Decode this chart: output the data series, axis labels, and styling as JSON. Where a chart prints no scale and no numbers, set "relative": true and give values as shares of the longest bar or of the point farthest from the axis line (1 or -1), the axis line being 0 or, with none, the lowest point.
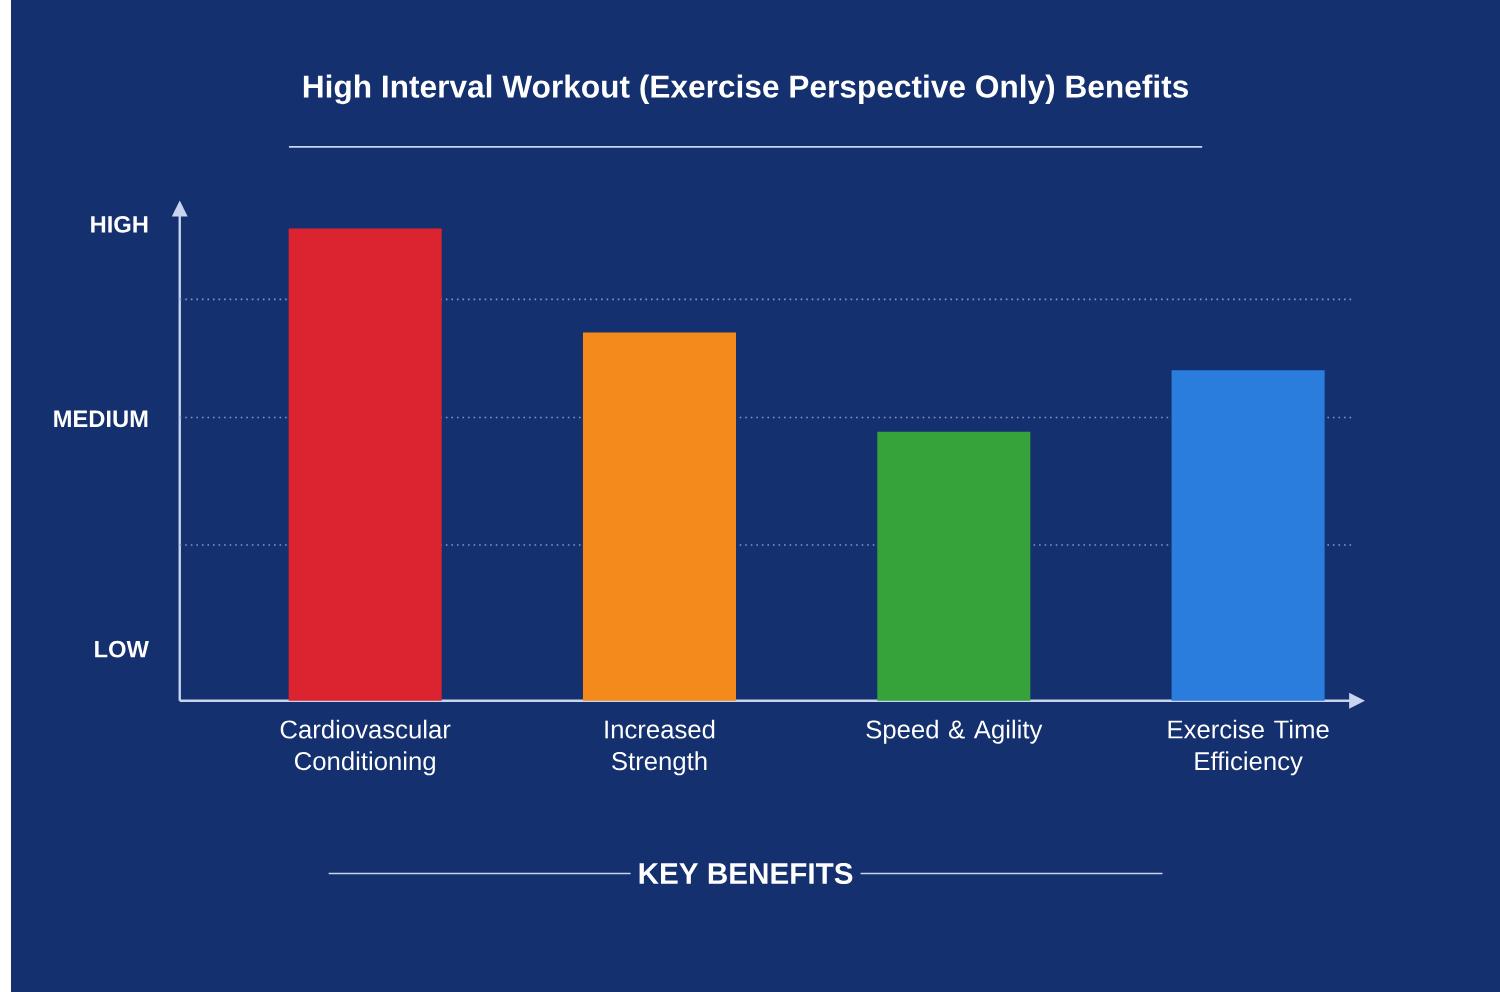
{
  "chart_data": {
    "type": "bar",
    "title": "High Interval Workout (Exercise Perspective Only) Benefits",
    "xlabel": "KEY BENEFITS",
    "categories": [
      "Cardiovascular Conditioning",
      "Increased Strength",
      "Speed & Agility",
      "Exercise Time Efficiency"
    ],
    "values": [
      1,
      0.78,
      0.57,
      0.7
    ],
    "relative": true,
    "colors": [
      "#dc2430",
      "#f58a1c",
      "#36a23a",
      "#2a7ddc"
    ],
    "annotations": [
      "LOW",
      "MEDIUM",
      "HIGH"
    ],
    "ref_lines": [
      {
        "axis": "y",
        "value": 0.33,
        "line_style": "dotted",
        "color": "#7f99cf"
      },
      {
        "axis": "y",
        "value": 0.6,
        "line_style": "dotted",
        "color": "#7f99cf"
      },
      {
        "axis": "y",
        "value": 0.85,
        "line_style": "dotted",
        "color": "#7f99cf"
      }
    ]
  }
}
